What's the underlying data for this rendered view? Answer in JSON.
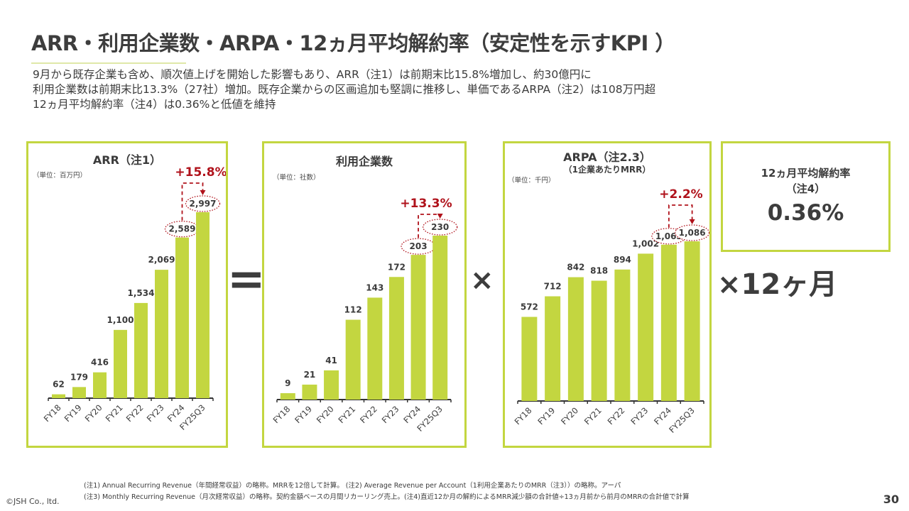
{
  "header": {
    "title": "ARR・利用企業数・ARPA・12ヵ月平均解約率（安定性を示すKPI ）",
    "lead": [
      "9月から既存企業も含め、順次値上げを開始した影響もあり、ARR（注1）は前期末比15.8%増加し、約30億円に",
      "利用企業数は前期末比13.3%（27社）増加。既存企業からの区画追加も堅調に推移し、単価であるARPA（注2）は108万円超",
      "12ヵ月平均解約率（注4）は0.36%と低値を維持"
    ]
  },
  "colors": {
    "bar": "#c3d640",
    "accent": "#b0121b",
    "border": "#c3d640",
    "text": "#3b3b3b"
  },
  "operators": {
    "equals": "=",
    "times1": "×",
    "times2": "×12ヶ月"
  },
  "churn": {
    "title": "12ヵ月平均解約率",
    "note": "（注4）",
    "value": "0.36%"
  },
  "chart_data": [
    {
      "type": "bar",
      "title": "ARR（注1）",
      "subtitle": "",
      "unit": "（単位：百万円）",
      "categories": [
        "FY18",
        "FY19",
        "FY20",
        "FY21",
        "FY22",
        "FY23",
        "FY24",
        "FY25Q3"
      ],
      "values": [
        62,
        179,
        416,
        1100,
        1534,
        2069,
        2589,
        2997
      ],
      "labels": [
        "62",
        "179",
        "416",
        "1,100",
        "1,534",
        "2,069",
        "2,589",
        "2,997"
      ],
      "highlight": [
        6,
        7
      ],
      "growth": "+15.8%",
      "ylim": [
        0,
        3000
      ]
    },
    {
      "type": "bar",
      "title": "利用企業数",
      "subtitle": "",
      "unit": "（単位：社数）",
      "categories": [
        "FY18",
        "FY19",
        "FY20",
        "FY21",
        "FY22",
        "FY23",
        "FY24",
        "FY25Q3"
      ],
      "values": [
        9,
        21,
        41,
        112,
        143,
        172,
        203,
        230
      ],
      "labels": [
        "9",
        "21",
        "41",
        "112",
        "143",
        "172",
        "203",
        "230"
      ],
      "highlight": [
        6,
        7
      ],
      "growth": "+13.3%",
      "ylim": [
        0,
        300
      ]
    },
    {
      "type": "bar",
      "title": "ARPA（注2.3）",
      "subtitle": "（1企業あたりMRR）",
      "unit": "（単位：千円）",
      "categories": [
        "FY18",
        "FY19",
        "FY20",
        "FY21",
        "FY22",
        "FY23",
        "FY24",
        "FY25Q3"
      ],
      "values": [
        572,
        712,
        842,
        818,
        894,
        1002,
        1063,
        1086
      ],
      "labels": [
        "572",
        "712",
        "842",
        "818",
        "894",
        "1,002",
        "1,063",
        "1,086"
      ],
      "highlight": [
        6,
        7
      ],
      "growth": "+2.2%",
      "ylim": [
        0,
        1100
      ]
    }
  ],
  "footer": {
    "notes": [
      "(注1) Annual Recurring Revenue（年間経常収益）の略称。MRRを12倍して計算。 (注2) Average Revenue per Account（1利用企業あたりのMRR（注3））の略称。アーパ",
      "(注3) Monthly Recurring Revenue（月次経常収益）の略称。契約金額ベースの月間リカーリング売上。(注4)直近12か月の解約によるMRR減少額の合計値÷13ヵ月前から前月のMRRの合計値で計算"
    ],
    "copyright": "©JSH Co., ltd.",
    "page": "30"
  }
}
